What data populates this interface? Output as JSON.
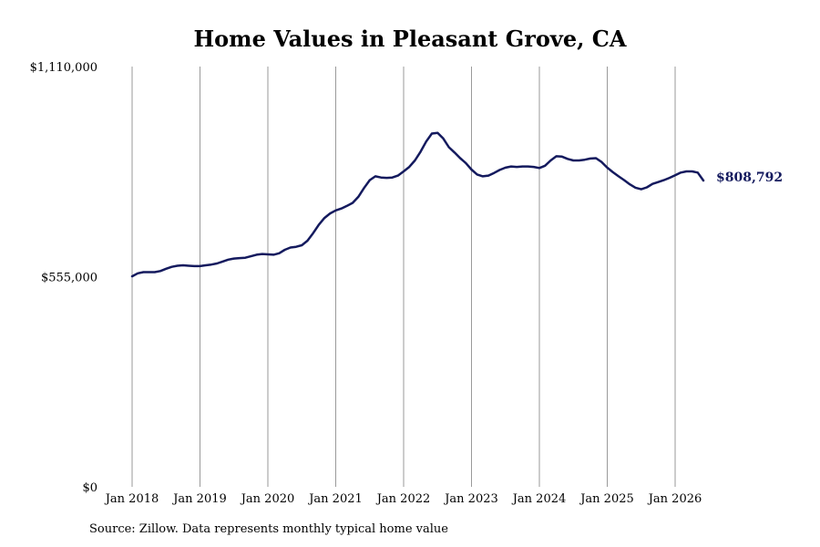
{
  "title": "Home Values in Pleasant Grove, CA",
  "source": "Source: Zillow. Data represents monthly typical home value",
  "chart_data": {
    "type": "line",
    "title": "Home Values in Pleasant Grove, CA",
    "xlabel": "",
    "ylabel": "",
    "ylim": [
      0,
      1110000
    ],
    "y_ticks": [
      {
        "value": 0,
        "label": "$0"
      },
      {
        "value": 555000,
        "label": "$555,000"
      },
      {
        "value": 1110000,
        "label": "$1,110,000"
      }
    ],
    "x_ticks": [
      {
        "value": "2018-01",
        "label": "Jan 2018"
      },
      {
        "value": "2019-01",
        "label": "Jan 2019"
      },
      {
        "value": "2020-01",
        "label": "Jan 2020"
      },
      {
        "value": "2021-01",
        "label": "Jan 2021"
      },
      {
        "value": "2022-01",
        "label": "Jan 2022"
      },
      {
        "value": "2023-01",
        "label": "Jan 2023"
      },
      {
        "value": "2024-01",
        "label": "Jan 2024"
      },
      {
        "value": "2025-01",
        "label": "Jan 2025"
      },
      {
        "value": "2026-01",
        "label": "Jan 2026"
      }
    ],
    "grid": "vertical",
    "line_color": "#141a5e",
    "end_label": "$808,792",
    "series": [
      {
        "x": [
          "2018-01",
          "2018-02",
          "2018-03",
          "2018-04",
          "2018-05",
          "2018-06",
          "2018-07",
          "2018-08",
          "2018-09",
          "2018-10",
          "2018-11",
          "2018-12",
          "2019-01",
          "2019-02",
          "2019-03",
          "2019-04",
          "2019-05",
          "2019-06",
          "2019-07",
          "2019-08",
          "2019-09",
          "2019-10",
          "2019-11",
          "2019-12",
          "2020-01",
          "2020-02",
          "2020-03",
          "2020-04",
          "2020-05",
          "2020-06",
          "2020-07",
          "2020-08",
          "2020-09",
          "2020-10",
          "2020-11",
          "2020-12",
          "2021-01",
          "2021-02",
          "2021-03",
          "2021-04",
          "2021-05",
          "2021-06",
          "2021-07",
          "2021-08",
          "2021-09",
          "2021-10",
          "2021-11",
          "2021-12",
          "2022-01",
          "2022-02",
          "2022-03",
          "2022-04",
          "2022-05",
          "2022-06",
          "2022-07",
          "2022-08",
          "2022-09",
          "2022-10",
          "2022-11",
          "2022-12",
          "2023-01",
          "2023-02",
          "2023-03",
          "2023-04",
          "2023-05",
          "2023-06",
          "2023-07",
          "2023-08",
          "2023-09",
          "2023-10",
          "2023-11",
          "2023-12",
          "2024-01",
          "2024-02",
          "2024-03",
          "2024-04",
          "2024-05",
          "2024-06",
          "2024-07",
          "2024-08",
          "2024-09",
          "2024-10",
          "2024-11",
          "2024-12",
          "2025-01",
          "2025-02",
          "2025-03",
          "2025-04",
          "2025-05",
          "2025-06",
          "2025-07",
          "2025-08",
          "2025-09",
          "2025-10",
          "2025-11",
          "2025-12",
          "2026-01",
          "2026-02",
          "2026-03",
          "2026-04",
          "2026-05",
          "2026-06"
        ],
        "values": [
          556000,
          564000,
          567000,
          567000,
          567000,
          570000,
          576000,
          581000,
          584000,
          585000,
          584000,
          583000,
          583000,
          585000,
          587000,
          590000,
          595000,
          600000,
          603000,
          604000,
          605000,
          609000,
          613000,
          615000,
          614000,
          613000,
          617000,
          626000,
          632000,
          634000,
          638000,
          650000,
          670000,
          692000,
          710000,
          722000,
          730000,
          735000,
          742000,
          750000,
          766000,
          789000,
          810000,
          820000,
          817000,
          816000,
          817000,
          822000,
          833000,
          845000,
          862000,
          885000,
          912000,
          933000,
          935000,
          920000,
          897000,
          883000,
          868000,
          855000,
          838000,
          825000,
          820000,
          822000,
          829000,
          837000,
          843000,
          846000,
          845000,
          846000,
          846000,
          845000,
          842000,
          848000,
          862000,
          873000,
          872000,
          866000,
          862000,
          862000,
          864000,
          867000,
          868000,
          858000,
          843000,
          831000,
          820000,
          810000,
          799000,
          790000,
          786000,
          791000,
          800000,
          805000,
          810000,
          816000,
          823000,
          830000,
          833000,
          833000,
          830000,
          809000
        ]
      }
    ]
  }
}
